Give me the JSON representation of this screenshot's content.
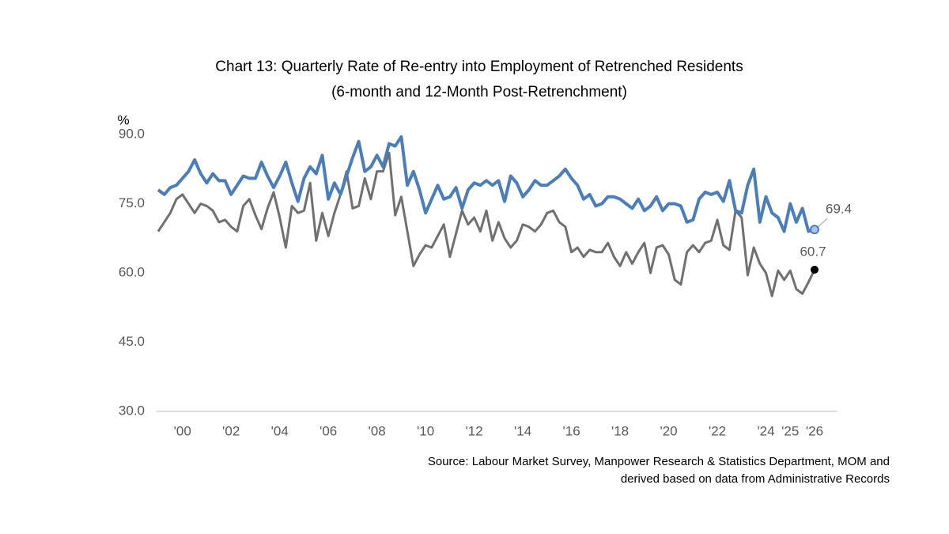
{
  "chart_data": {
    "type": "line",
    "title": "Chart 13: Quarterly Rate of Re-entry into Employment of Retrenched Residents",
    "subtitle": "(6-month and 12-Month Post-Retrenchment)",
    "y_label": "%",
    "source": [
      "Source: Labour Market Survey, Manpower Research & Statistics Department, MOM and",
      "derived based on data from Administrative Records"
    ],
    "categories": [
      null,
      null,
      null,
      null,
      "'00",
      null,
      null,
      null,
      null,
      null,
      null,
      null,
      "'02",
      null,
      null,
      null,
      null,
      null,
      null,
      null,
      "'04",
      null,
      null,
      null,
      null,
      null,
      null,
      null,
      "'06",
      null,
      null,
      null,
      null,
      null,
      null,
      null,
      "'08",
      null,
      null,
      null,
      null,
      null,
      null,
      null,
      "'10",
      null,
      null,
      null,
      null,
      null,
      null,
      null,
      "'12",
      null,
      null,
      null,
      null,
      null,
      null,
      null,
      "'14",
      null,
      null,
      null,
      null,
      null,
      null,
      null,
      "'16",
      null,
      null,
      null,
      null,
      null,
      null,
      null,
      "'18",
      null,
      null,
      null,
      null,
      null,
      null,
      null,
      "'20",
      null,
      null,
      null,
      null,
      null,
      null,
      null,
      "'22",
      null,
      null,
      null,
      null,
      null,
      null,
      null,
      "'24",
      null,
      null,
      null,
      "'25",
      null,
      null,
      null,
      "'26"
    ],
    "series": [
      {
        "color": "#4a7ebb",
        "values": [
          78,
          77,
          78.5,
          79,
          80.5,
          82,
          84.5,
          81.5,
          79.5,
          81.5,
          80,
          80,
          77,
          79,
          81,
          80.5,
          80.5,
          84,
          81,
          78.5,
          81,
          84,
          79.5,
          75.5,
          80.5,
          83,
          81.5,
          85.5,
          76,
          79.5,
          77,
          81,
          85,
          88.5,
          82,
          83,
          85.5,
          83,
          88,
          87.5,
          89.5,
          79,
          82,
          78,
          73,
          76,
          79,
          76,
          76.5,
          78.5,
          74,
          78,
          79.5,
          79,
          80,
          79,
          80,
          75.5,
          81,
          79.5,
          76.5,
          78,
          80,
          79,
          79,
          80,
          81,
          82.5,
          80.5,
          79,
          76,
          77,
          74.5,
          75,
          76.5,
          76.5,
          76,
          75,
          74,
          76,
          73.5,
          74.5,
          76.5,
          73.5,
          75,
          75,
          74.5,
          71,
          71.5,
          76,
          77.5,
          77,
          77.5,
          75.5,
          80,
          73.5,
          73,
          79,
          82.5,
          71,
          76.5,
          73,
          72,
          69,
          75,
          71,
          74,
          69,
          69.4
        ]
      },
      {
        "color": "#707070",
        "values": [
          69,
          71,
          73,
          76,
          77,
          75,
          73,
          75,
          74.5,
          73.5,
          71,
          71.5,
          70,
          69,
          74.5,
          76,
          72.5,
          69.5,
          74,
          77.5,
          72,
          65.5,
          74.5,
          73,
          73.5,
          79.5,
          67,
          73,
          68,
          73,
          77,
          82,
          74,
          74.5,
          80.5,
          76,
          82,
          82,
          86,
          72.5,
          76.5,
          69,
          61.5,
          64,
          66,
          65.5,
          68,
          70.5,
          63.5,
          68.5,
          73.5,
          70.5,
          72,
          69,
          73.5,
          67,
          71,
          67.5,
          65.5,
          67,
          70.5,
          70,
          69,
          70.5,
          73,
          73.5,
          71,
          70,
          64.5,
          65.5,
          63.5,
          65,
          64.5,
          64.5,
          66.5,
          63.5,
          61.5,
          64.5,
          62,
          64.5,
          66.5,
          60,
          65.5,
          66,
          64,
          58.5,
          57.5,
          64.5,
          66,
          64.5,
          66.5,
          67,
          71.5,
          66,
          65,
          73.5,
          72,
          59.5,
          65.5,
          62,
          60,
          55,
          60.5,
          58.5,
          60.5,
          56.5,
          55.5,
          58,
          60.7
        ]
      }
    ],
    "ylim": [
      30,
      90
    ],
    "yticks": [
      {
        "value": 30,
        "label": "30.0"
      },
      {
        "value": 45,
        "label": "45.0"
      },
      {
        "value": 60,
        "label": "60.0"
      },
      {
        "value": 75,
        "label": "75.0"
      },
      {
        "value": 90,
        "label": "90.0"
      }
    ],
    "grid": false
  }
}
